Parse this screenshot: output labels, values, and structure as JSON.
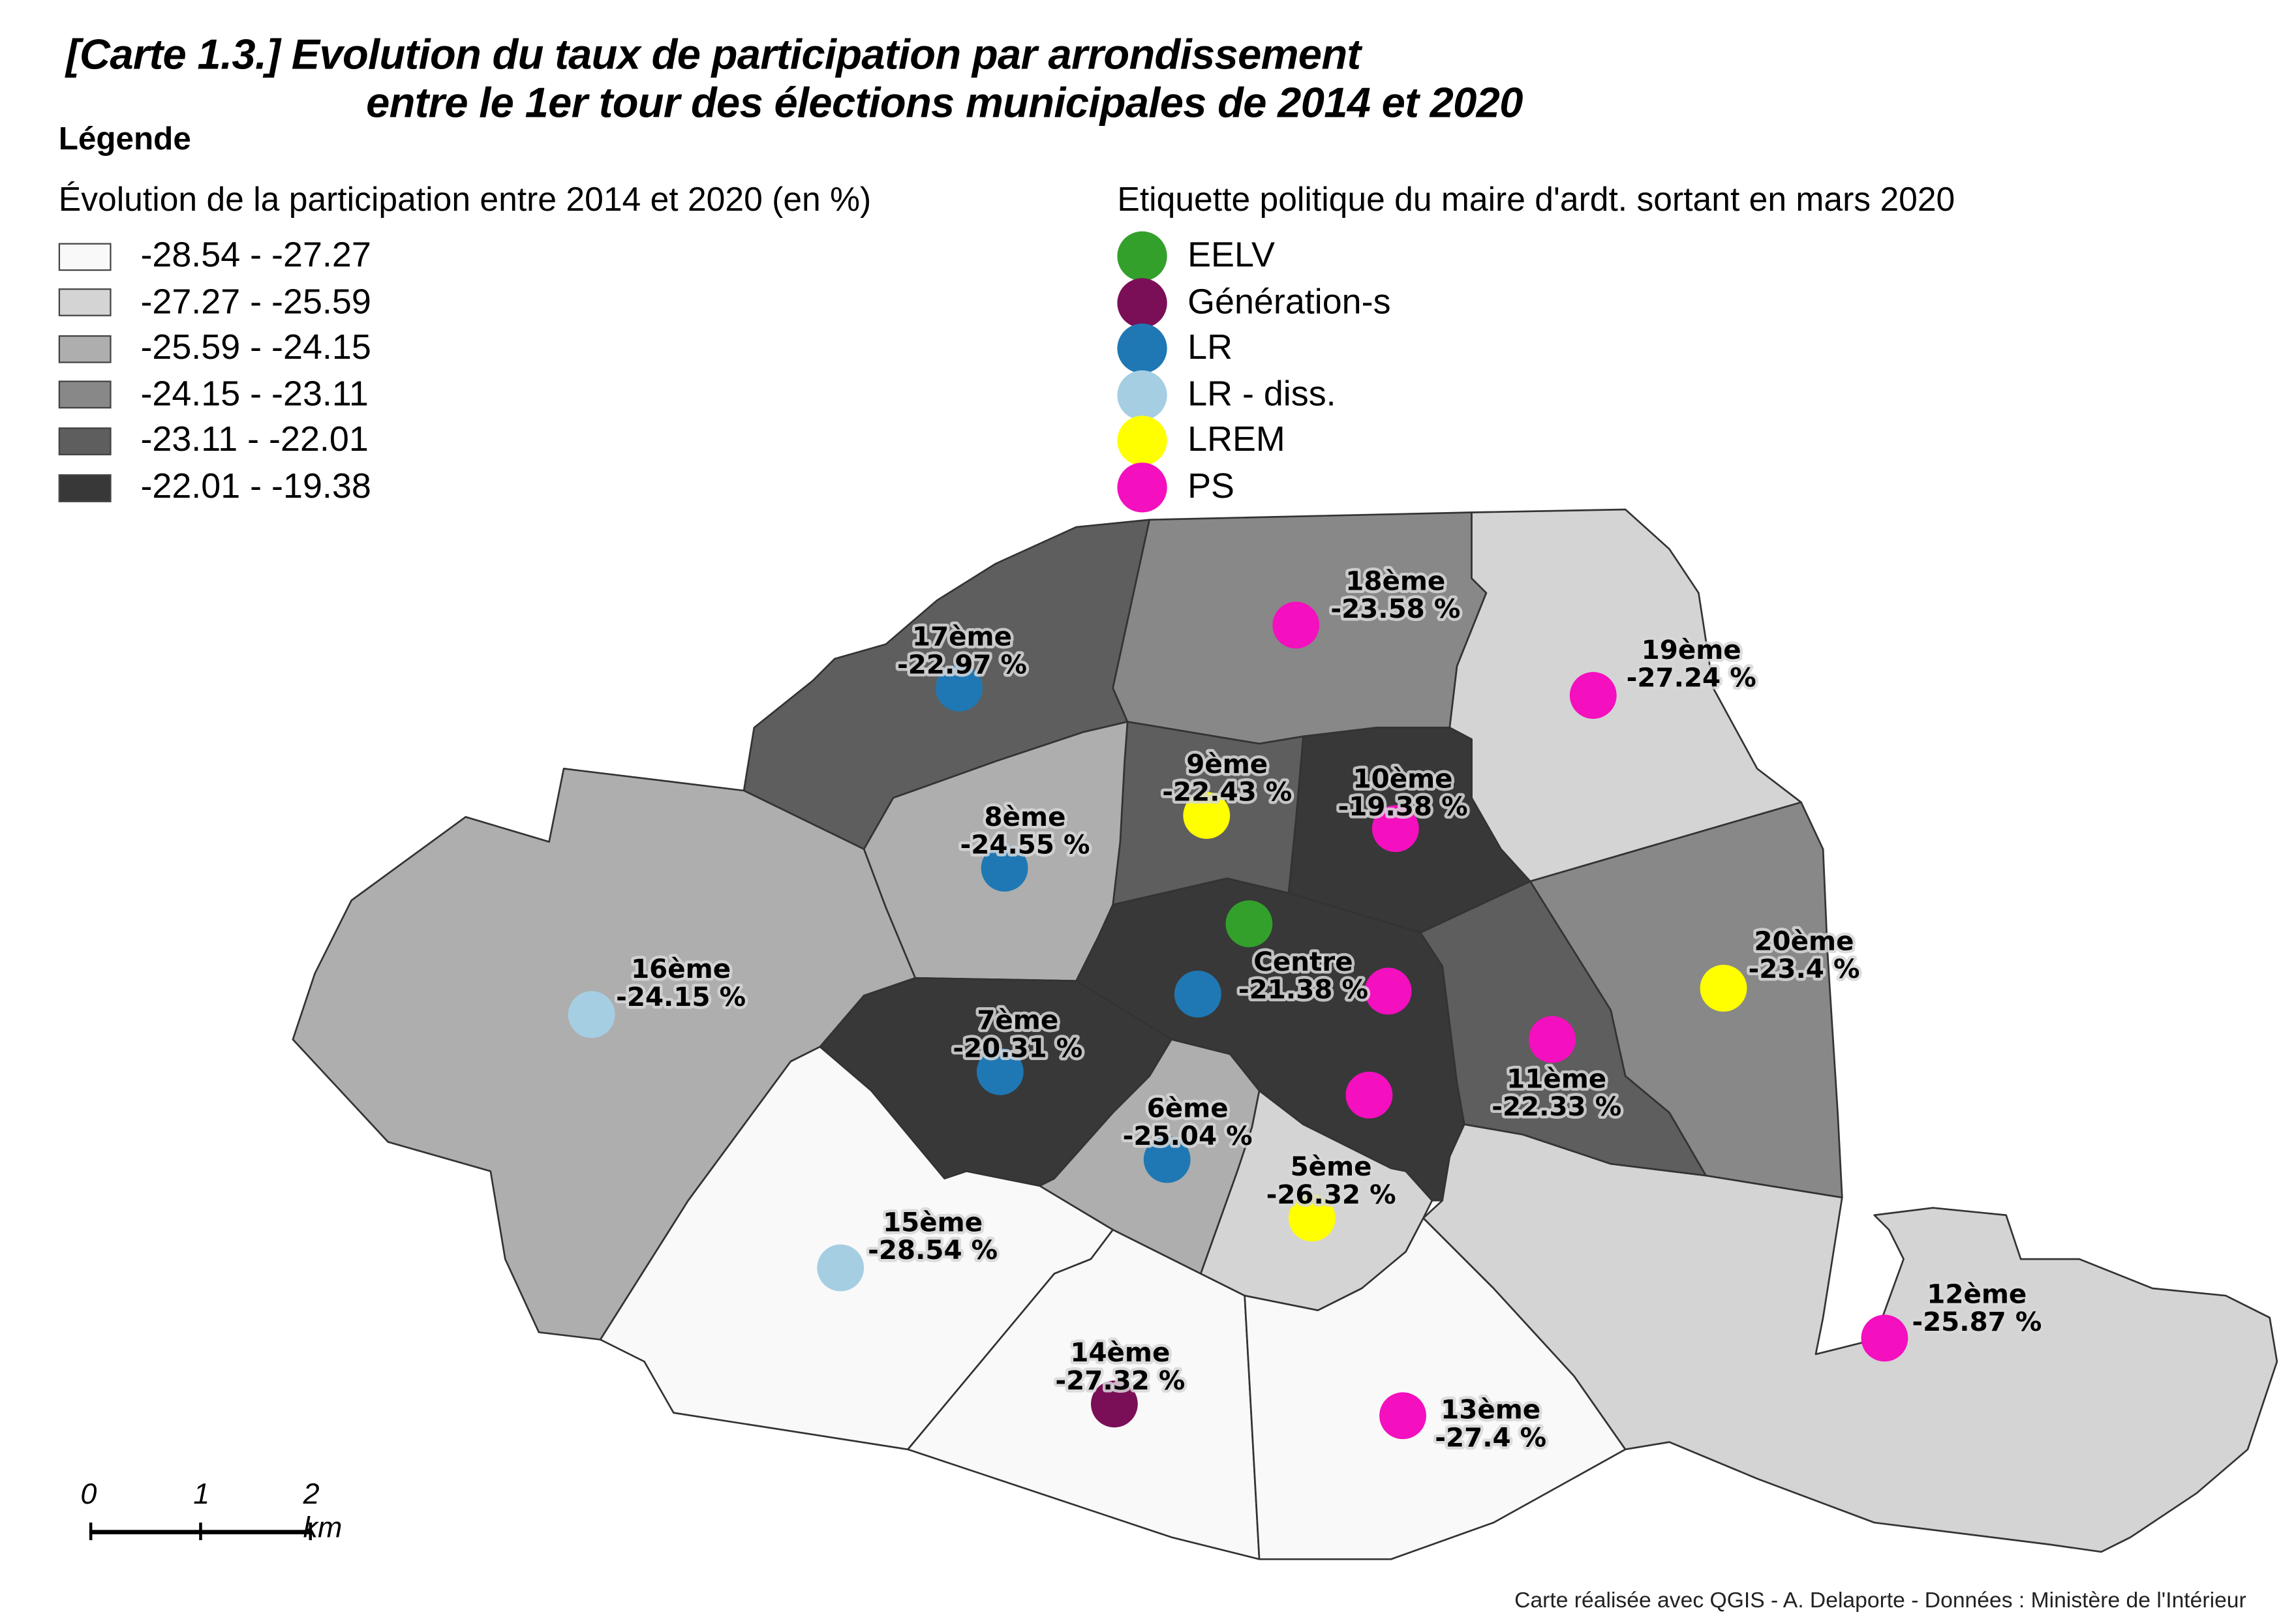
{
  "title": {
    "line1": "[Carte 1.3.] Evolution du taux de participation par arrondissement",
    "line2": "entre le 1er tour des élections municipales de 2014 et 2020"
  },
  "legend": {
    "heading": "Légende",
    "participation_title": "Évolution de la participation entre 2014 et 2020 (en %)",
    "classes": [
      {
        "label": "-28.54 - -27.27",
        "color": "#f9f9f9"
      },
      {
        "label": "-27.27 - -25.59",
        "color": "#d4d4d4"
      },
      {
        "label": "-25.59 - -24.15",
        "color": "#aeaeae"
      },
      {
        "label": "-24.15 - -23.11",
        "color": "#888888"
      },
      {
        "label": "-23.11 - -22.01",
        "color": "#5e5e5e"
      },
      {
        "label": "-22.01 - -19.38",
        "color": "#383838"
      }
    ],
    "party_title": "Etiquette politique du maire d'ardt. sortant en mars 2020",
    "parties": [
      {
        "label": "EELV",
        "color": "#33a02c"
      },
      {
        "label": "Génération-s",
        "color": "#7b0f57"
      },
      {
        "label": "LR",
        "color": "#1f78b4"
      },
      {
        "label": "LR - diss.",
        "color": "#a6cee3"
      },
      {
        "label": "LREM",
        "color": "#ffff00"
      },
      {
        "label": "PS",
        "color": "#f40fbf"
      }
    ]
  },
  "districts": [
    {
      "id": "17",
      "name": "17ème",
      "value": "-22.97 %",
      "class": 4,
      "parties": [
        "LR"
      ]
    },
    {
      "id": "18",
      "name": "18ème",
      "value": "-23.58 %",
      "class": 3,
      "parties": [
        "PS"
      ]
    },
    {
      "id": "19",
      "name": "19ème",
      "value": "-27.24 %",
      "class": 1,
      "parties": [
        "PS"
      ]
    },
    {
      "id": "20",
      "name": "20ème",
      "value": "-23.4 %",
      "class": 3,
      "parties": [
        "LREM"
      ]
    },
    {
      "id": "11",
      "name": "11ème",
      "value": "-22.33 %",
      "class": 4,
      "parties": [
        "PS"
      ]
    },
    {
      "id": "10",
      "name": "10ème",
      "value": "-19.38 %",
      "class": 5,
      "parties": [
        "PS"
      ]
    },
    {
      "id": "9",
      "name": "9ème",
      "value": "-22.43 %",
      "class": 4,
      "parties": [
        "LREM"
      ]
    },
    {
      "id": "8",
      "name": "8ème",
      "value": "-24.55 %",
      "class": 2,
      "parties": [
        "LR"
      ]
    },
    {
      "id": "centre",
      "name": "Centre",
      "value": "-21.38 %",
      "class": 5,
      "parties": [
        "EELV",
        "LR",
        "PS",
        "PS"
      ]
    },
    {
      "id": "7",
      "name": "7ème",
      "value": "-20.31 %",
      "class": 5,
      "parties": [
        "LR"
      ]
    },
    {
      "id": "6",
      "name": "6ème",
      "value": "-25.04 %",
      "class": 2,
      "parties": [
        "LR"
      ]
    },
    {
      "id": "5",
      "name": "5ème",
      "value": "-26.32 %",
      "class": 1,
      "parties": [
        "LREM"
      ]
    },
    {
      "id": "16",
      "name": "16ème",
      "value": "-24.15 %",
      "class": 2,
      "parties": [
        "LR - diss."
      ]
    },
    {
      "id": "15",
      "name": "15ème",
      "value": "-28.54 %",
      "class": 0,
      "parties": [
        "LR - diss."
      ]
    },
    {
      "id": "14",
      "name": "14ème",
      "value": "-27.32 %",
      "class": 0,
      "parties": [
        "Génération-s"
      ]
    },
    {
      "id": "13",
      "name": "13ème",
      "value": "-27.4 %",
      "class": 0,
      "parties": [
        "PS"
      ]
    },
    {
      "id": "12",
      "name": "12ème",
      "value": "-25.87 %",
      "class": 1,
      "parties": [
        "PS"
      ]
    }
  ],
  "scale_bar": {
    "ticks": [
      "0",
      "1",
      "2 km"
    ]
  },
  "credit": "Carte réalisée avec QGIS - A. Delaporte - Données : Ministère de l'Intérieur"
}
